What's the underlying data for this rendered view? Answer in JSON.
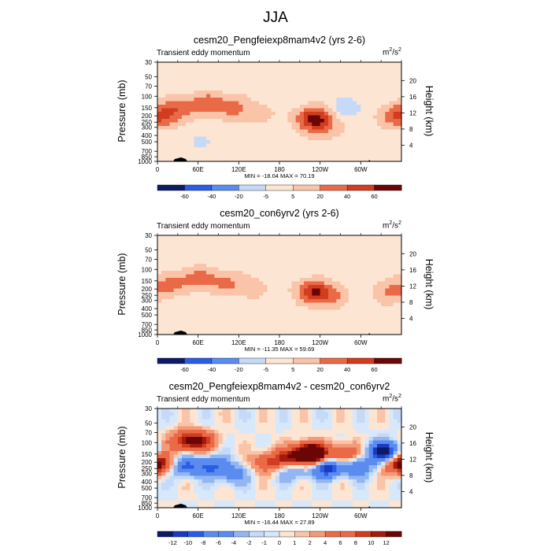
{
  "figure_title": "JJA",
  "chart_data": [
    {
      "type": "heatmap",
      "title": "cesm20_Pengfeiexp8mam4v2 (yrs 2-6)",
      "left_string": "Transient eddy momentum",
      "units": "m2/s2",
      "units_base": "m",
      "units_sup1": "2",
      "units_mid": "/s",
      "units_sup2": "2",
      "ylabel": "Pressure (mb)",
      "ylabel_right": "Height (km)",
      "pressure_ticks": [
        "30",
        "50",
        "70",
        "100",
        "150",
        "200",
        "250",
        "300",
        "400",
        "500",
        "700",
        "850",
        "1000"
      ],
      "height_ticks": [
        "20",
        "16",
        "12",
        "8",
        "4"
      ],
      "lon_ticks": [
        "0",
        "60E",
        "120E",
        "180",
        "120W",
        "60W"
      ],
      "min_max": "MIN = -18.04  MAX =  70.19",
      "levels": [
        "-60",
        "-40",
        "-20",
        "-5",
        "5",
        "20",
        "40",
        "60"
      ],
      "palette": [
        "#0d1a66",
        "#1a3abf",
        "#2b5ce6",
        "#5a8cf0",
        "#93b6f2",
        "#c6daf7",
        "#d7e8fb",
        "#fde5d3",
        "#f9c4a8",
        "#f49a78",
        "#ea6a47",
        "#d23c1f",
        "#a51a0c",
        "#6b0606"
      ],
      "peaks": [
        {
          "lon": 10,
          "p": 200,
          "v": 32
        },
        {
          "lon": 35,
          "p": 150,
          "v": 30
        },
        {
          "lon": 75,
          "p": 130,
          "v": 34
        },
        {
          "lon": 110,
          "p": 150,
          "v": 28
        },
        {
          "lon": 150,
          "p": 180,
          "v": 12
        },
        {
          "lon": 230,
          "p": 220,
          "v": 68
        },
        {
          "lon": 245,
          "p": 300,
          "v": 22
        },
        {
          "lon": 350,
          "p": 200,
          "v": 28
        },
        {
          "lon": 280,
          "p": 150,
          "v": -12
        },
        {
          "lon": 60,
          "p": 500,
          "v": -6
        }
      ]
    },
    {
      "type": "heatmap",
      "title": "cesm20_con6yrv2 (yrs 2-6)",
      "left_string": "Transient eddy momentum",
      "units": "m2/s2",
      "units_base": "m",
      "units_sup1": "2",
      "units_mid": "/s",
      "units_sup2": "2",
      "ylabel": "Pressure (mb)",
      "ylabel_right": "Height (km)",
      "pressure_ticks": [
        "30",
        "50",
        "70",
        "100",
        "150",
        "200",
        "250",
        "300",
        "400",
        "500",
        "700",
        "850",
        "1000"
      ],
      "height_ticks": [
        "20",
        "16",
        "12",
        "8",
        "4"
      ],
      "lon_ticks": [
        "0",
        "60E",
        "120E",
        "180",
        "120W",
        "60W"
      ],
      "min_max": "MIN = -11.35  MAX =  59.69",
      "levels": [
        "-60",
        "-40",
        "-20",
        "-5",
        "5",
        "20",
        "40",
        "60"
      ],
      "palette": [
        "#0d1a66",
        "#1a3abf",
        "#2b5ce6",
        "#5a8cf0",
        "#93b6f2",
        "#c6daf7",
        "#d7e8fb",
        "#fde5d3",
        "#f9c4a8",
        "#f49a78",
        "#ea6a47",
        "#d23c1f",
        "#a51a0c",
        "#6b0606"
      ],
      "peaks": [
        {
          "lon": 20,
          "p": 170,
          "v": 26
        },
        {
          "lon": 60,
          "p": 140,
          "v": 30
        },
        {
          "lon": 100,
          "p": 160,
          "v": 26
        },
        {
          "lon": 140,
          "p": 190,
          "v": 14
        },
        {
          "lon": 230,
          "p": 220,
          "v": 56
        },
        {
          "lon": 255,
          "p": 250,
          "v": 24
        },
        {
          "lon": 345,
          "p": 220,
          "v": 26
        },
        {
          "lon": 45,
          "p": 450,
          "v": -5
        }
      ]
    },
    {
      "type": "heatmap",
      "title": "cesm20_Pengfeiexp8mam4v2 - cesm20_con6yrv2",
      "left_string": "Transient eddy momentum",
      "units": "m2/s2",
      "units_base": "m",
      "units_sup1": "2",
      "units_mid": "/s",
      "units_sup2": "2",
      "ylabel": "Pressure (mb)",
      "ylabel_right": "Height (km)",
      "pressure_ticks": [
        "30",
        "50",
        "70",
        "100",
        "150",
        "200",
        "250",
        "300",
        "400",
        "500",
        "700",
        "850",
        "1000"
      ],
      "height_ticks": [
        "20",
        "16",
        "12",
        "8",
        "4"
      ],
      "lon_ticks": [
        "0",
        "60E",
        "120E",
        "180",
        "120W",
        "60W"
      ],
      "min_max": "MIN = -16.44  MAX =  27.89",
      "levels": [
        "-12",
        "-10",
        "-8",
        "-6",
        "-4",
        "-2",
        "-1",
        "0",
        "1",
        "2",
        "4",
        "6",
        "8",
        "10",
        "12"
      ],
      "palette": [
        "#0d1a66",
        "#1a3abf",
        "#2b5ce6",
        "#5a8cf0",
        "#93b6f2",
        "#c6daf7",
        "#d7e8fb",
        "#fde5d3",
        "#f9c4a8",
        "#f49a78",
        "#ea6a47",
        "#d23c1f",
        "#a51a0c",
        "#6b0606"
      ],
      "peaks": [
        {
          "lon": 5,
          "p": 200,
          "v": 8
        },
        {
          "lon": 40,
          "p": 95,
          "v": 10
        },
        {
          "lon": 65,
          "p": 95,
          "v": 9
        },
        {
          "lon": 40,
          "p": 230,
          "v": -9
        },
        {
          "lon": 80,
          "p": 230,
          "v": -8
        },
        {
          "lon": 110,
          "p": 300,
          "v": -6
        },
        {
          "lon": 160,
          "p": 200,
          "v": 7
        },
        {
          "lon": 190,
          "p": 180,
          "v": 9
        },
        {
          "lon": 200,
          "p": 260,
          "v": -6
        },
        {
          "lon": 225,
          "p": 150,
          "v": 26
        },
        {
          "lon": 250,
          "p": 240,
          "v": -12
        },
        {
          "lon": 275,
          "p": 150,
          "v": 10
        },
        {
          "lon": 295,
          "p": 230,
          "v": -8
        },
        {
          "lon": 335,
          "p": 140,
          "v": -15
        },
        {
          "lon": 355,
          "p": 220,
          "v": 8
        }
      ]
    }
  ]
}
